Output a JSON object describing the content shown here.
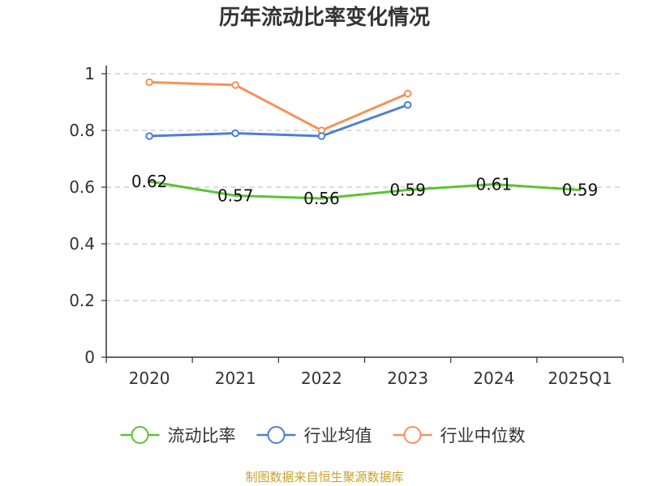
{
  "chart_data": {
    "type": "line",
    "title": "历年流动比率变化情况",
    "categories": [
      "2020",
      "2021",
      "2022",
      "2023",
      "2024",
      "2025Q1"
    ],
    "ylim": [
      0,
      1
    ],
    "yticks": [
      "0",
      "0.2",
      "0.4",
      "0.6",
      "0.8",
      "1"
    ],
    "grid": true,
    "legend_position": "bottom",
    "series": [
      {
        "name": "流动比率",
        "color": "#5cc334",
        "values": [
          0.62,
          0.57,
          0.56,
          0.59,
          0.61,
          0.59
        ],
        "labels": [
          "0.62",
          "0.57",
          "0.56",
          "0.59",
          "0.61",
          "0.59"
        ],
        "markers": false
      },
      {
        "name": "行业均值",
        "color": "#4d7fd6",
        "values": [
          0.78,
          0.79,
          0.78,
          0.89,
          null,
          null
        ],
        "markers": true
      },
      {
        "name": "行业中位数",
        "color": "#f5925a",
        "values": [
          0.97,
          0.96,
          0.8,
          0.93,
          null,
          null
        ],
        "markers": true
      }
    ]
  },
  "footer": {
    "source": "制图数据来自恒生聚源数据库"
  }
}
